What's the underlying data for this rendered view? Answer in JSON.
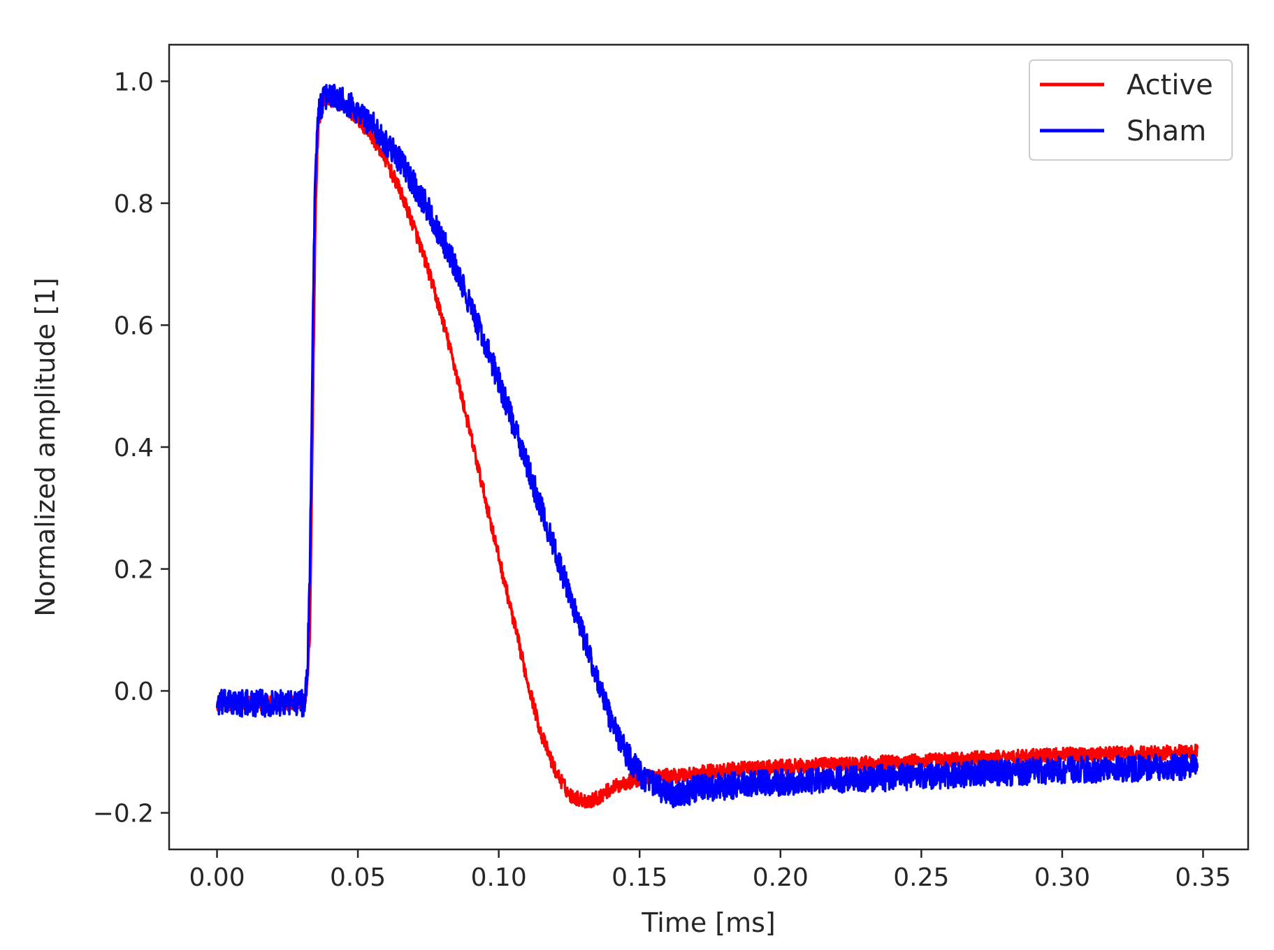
{
  "chart_data": {
    "type": "line",
    "title": "",
    "xlabel": "Time [ms]",
    "ylabel": "Normalized amplitude [1]",
    "xlim": [
      -0.017,
      0.366
    ],
    "ylim": [
      -0.26,
      1.06
    ],
    "x_ticks": [
      0.0,
      0.05,
      0.1,
      0.15,
      0.2,
      0.25,
      0.3,
      0.35
    ],
    "x_tick_labels": [
      "0.00",
      "0.05",
      "0.10",
      "0.15",
      "0.20",
      "0.25",
      "0.30",
      "0.35"
    ],
    "y_ticks": [
      -0.2,
      0.0,
      0.2,
      0.4,
      0.6,
      0.8,
      1.0
    ],
    "y_tick_labels": [
      "−0.2",
      "0.0",
      "0.2",
      "0.4",
      "0.6",
      "0.8",
      "1.0"
    ],
    "grid": false,
    "legend_position": "top-right",
    "series": [
      {
        "name": "Active",
        "color": "#ff0000",
        "noise": 0.012,
        "x": [
          0.0,
          0.031,
          0.032,
          0.033,
          0.034,
          0.035,
          0.036,
          0.038,
          0.04,
          0.045,
          0.05,
          0.055,
          0.06,
          0.065,
          0.07,
          0.075,
          0.08,
          0.085,
          0.09,
          0.095,
          0.1,
          0.105,
          0.11,
          0.115,
          0.12,
          0.125,
          0.13,
          0.133,
          0.135,
          0.14,
          0.145,
          0.15,
          0.155,
          0.16,
          0.18,
          0.2,
          0.25,
          0.3,
          0.348
        ],
        "y": [
          -0.02,
          -0.02,
          0.01,
          0.1,
          0.45,
          0.8,
          0.93,
          0.97,
          0.97,
          0.96,
          0.94,
          0.91,
          0.87,
          0.82,
          0.76,
          0.69,
          0.61,
          0.52,
          0.42,
          0.32,
          0.22,
          0.12,
          0.02,
          -0.07,
          -0.13,
          -0.17,
          -0.18,
          -0.18,
          -0.175,
          -0.16,
          -0.15,
          -0.145,
          -0.14,
          -0.14,
          -0.13,
          -0.125,
          -0.115,
          -0.105,
          -0.1
        ]
      },
      {
        "name": "Sham",
        "color": "#0000ff",
        "noise": 0.022,
        "x": [
          0.0,
          0.031,
          0.032,
          0.033,
          0.034,
          0.035,
          0.036,
          0.038,
          0.04,
          0.045,
          0.05,
          0.055,
          0.06,
          0.065,
          0.07,
          0.075,
          0.08,
          0.085,
          0.09,
          0.095,
          0.1,
          0.105,
          0.11,
          0.115,
          0.12,
          0.125,
          0.13,
          0.135,
          0.14,
          0.145,
          0.15,
          0.155,
          0.16,
          0.165,
          0.17,
          0.2,
          0.25,
          0.3,
          0.348
        ],
        "y": [
          -0.02,
          -0.02,
          0.02,
          0.2,
          0.6,
          0.88,
          0.95,
          0.97,
          0.98,
          0.97,
          0.95,
          0.93,
          0.9,
          0.87,
          0.83,
          0.79,
          0.74,
          0.69,
          0.63,
          0.57,
          0.51,
          0.44,
          0.37,
          0.3,
          0.23,
          0.16,
          0.09,
          0.02,
          -0.05,
          -0.1,
          -0.135,
          -0.155,
          -0.17,
          -0.17,
          -0.16,
          -0.15,
          -0.14,
          -0.13,
          -0.125
        ]
      }
    ]
  }
}
